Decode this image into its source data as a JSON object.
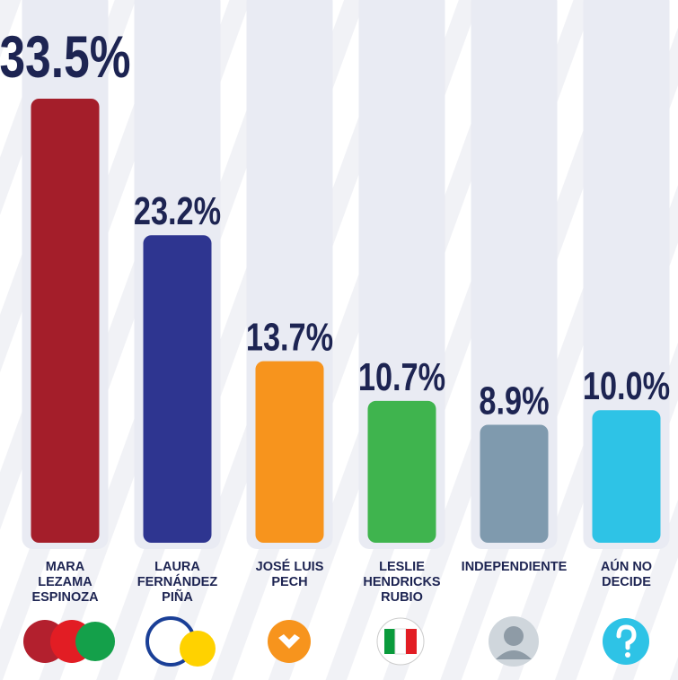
{
  "chart_data": {
    "type": "bar",
    "categories": [
      "MARA LEZAMA ESPINOZA",
      "LAURA FERNÁNDEZ PIÑA",
      "JOSÉ LUIS PECH",
      "LESLIE HENDRICKS RUBIO",
      "INDEPENDIENTE",
      "AÚN NO DECIDE"
    ],
    "values": [
      33.5,
      23.2,
      13.7,
      10.7,
      8.9,
      10.0
    ],
    "value_labels": [
      "33.5%",
      "23.2%",
      "13.7%",
      "10.7%",
      "8.9%",
      "10.0%"
    ],
    "colors": [
      "#a41e2a",
      "#2e3590",
      "#f7941d",
      "#3fb44e",
      "#7f9aae",
      "#2ec3e6"
    ]
  }
}
